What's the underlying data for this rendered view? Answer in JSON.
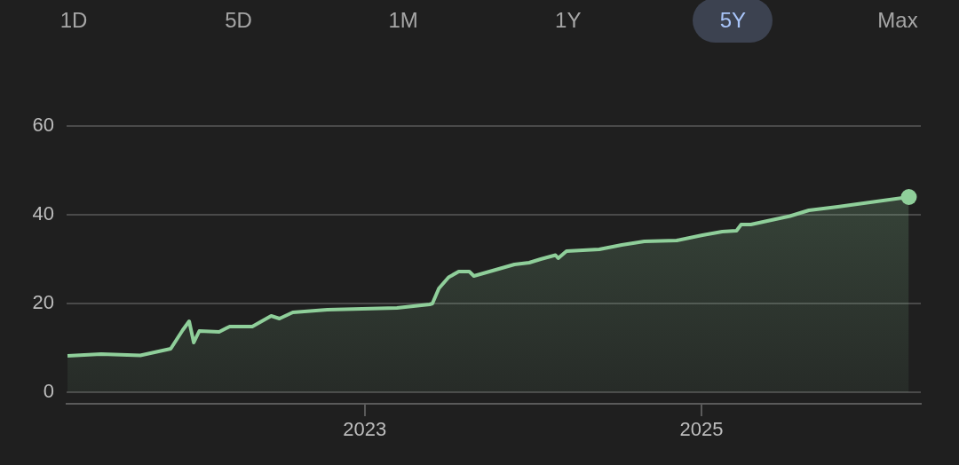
{
  "chart_data": {
    "type": "area",
    "annotations": [
      "1D",
      "5D",
      "1M",
      "1Y",
      "5Y",
      "Max"
    ],
    "x": [
      "2021-03-27",
      "2021-06-08",
      "2021-09-01",
      "2021-11-06",
      "2021-12-02",
      "2021-12-16",
      "2021-12-26",
      "2022-01-07",
      "2022-02-19",
      "2022-03-14",
      "2022-05-02",
      "2022-06-12",
      "2022-06-30",
      "2022-07-29",
      "2022-10-12",
      "2023-03-12",
      "2023-05-22",
      "2023-05-28",
      "2023-06-11",
      "2023-07-02",
      "2023-07-24",
      "2023-08-16",
      "2023-08-26",
      "2023-11-22",
      "2023-12-24",
      "2024-01-18",
      "2024-02-19",
      "2024-02-25",
      "2024-03-14",
      "2024-05-24",
      "2024-07-12",
      "2024-08-30",
      "2024-11-08",
      "2025-01-03",
      "2025-02-15",
      "2025-03-18",
      "2025-03-28",
      "2025-04-18",
      "2025-07-12",
      "2025-08-22",
      "2025-10-24",
      "2026-01-16",
      "2026-03-27"
    ],
    "series": [
      {
        "color": "#8fcf9a",
        "values": [
          8.2,
          8.6,
          8.3,
          9.8,
          14,
          16,
          11.2,
          13.8,
          13.6,
          14.8,
          14.8,
          17.2,
          16.6,
          18,
          18.6,
          19,
          19.8,
          20,
          23.4,
          25.9,
          27.2,
          27.2,
          26.2,
          28.8,
          29.2,
          30,
          30.9,
          30.2,
          31.8,
          32.2,
          33.2,
          34,
          34.2,
          35.4,
          36.2,
          36.4,
          37.8,
          37.8,
          39.7,
          41,
          41.8,
          43,
          44
        ]
      }
    ],
    "xlim": [
      "2021-03-25",
      "2026-04-22"
    ],
    "xticks": [
      {
        "value": "2023",
        "label": "2023"
      },
      {
        "value": "2025",
        "label": "2025"
      }
    ],
    "ylim": [
      -2.6,
      60
    ],
    "yticks": [
      0,
      20,
      40,
      60
    ],
    "grid": "y"
  }
}
